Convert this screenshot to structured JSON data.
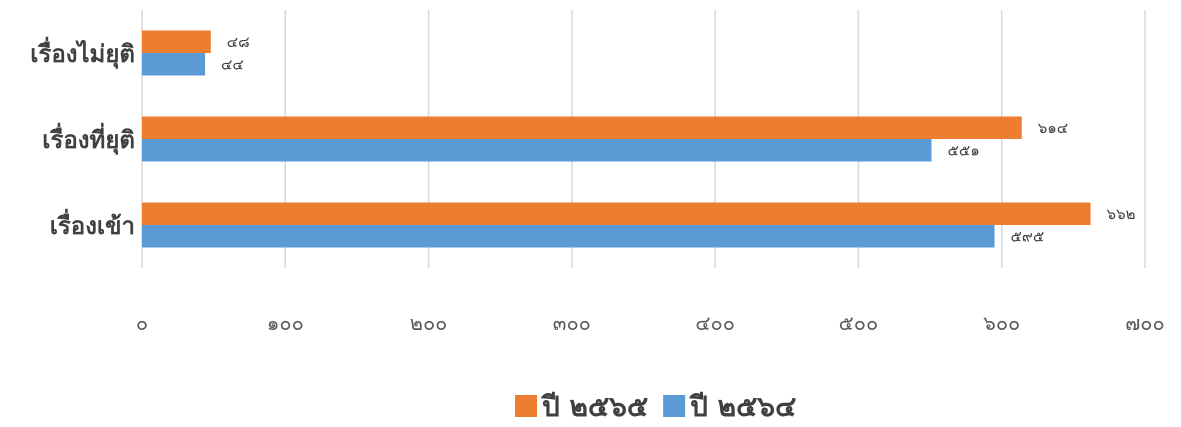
{
  "chart_data": {
    "type": "bar",
    "orientation": "horizontal",
    "categories": [
      "เรื่องไม่ยุติ",
      "เรื่องที่ยุติ",
      "เรื่องเข้า"
    ],
    "series": [
      {
        "name": "ปี ๒๕๖๕",
        "color": "#ED7D31",
        "values": [
          48,
          614,
          662
        ],
        "labels": [
          "๔๘",
          "๖๑๔",
          "๖๖๒"
        ]
      },
      {
        "name": "ปี ๒๕๖๔",
        "color": "#5B9BD5",
        "values": [
          44,
          551,
          595
        ],
        "labels": [
          "๔๔",
          "๕๕๑",
          "๕๙๕"
        ]
      }
    ],
    "xlim": [
      0,
      700
    ],
    "ticks": [
      0,
      100,
      200,
      300,
      400,
      500,
      600,
      700
    ],
    "tick_labels": [
      "๐",
      "๑๐๐",
      "๒๐๐",
      "๓๐๐",
      "๔๐๐",
      "๕๐๐",
      "๖๐๐",
      "๗๐๐"
    ],
    "grid": true,
    "legend": "bottom"
  }
}
